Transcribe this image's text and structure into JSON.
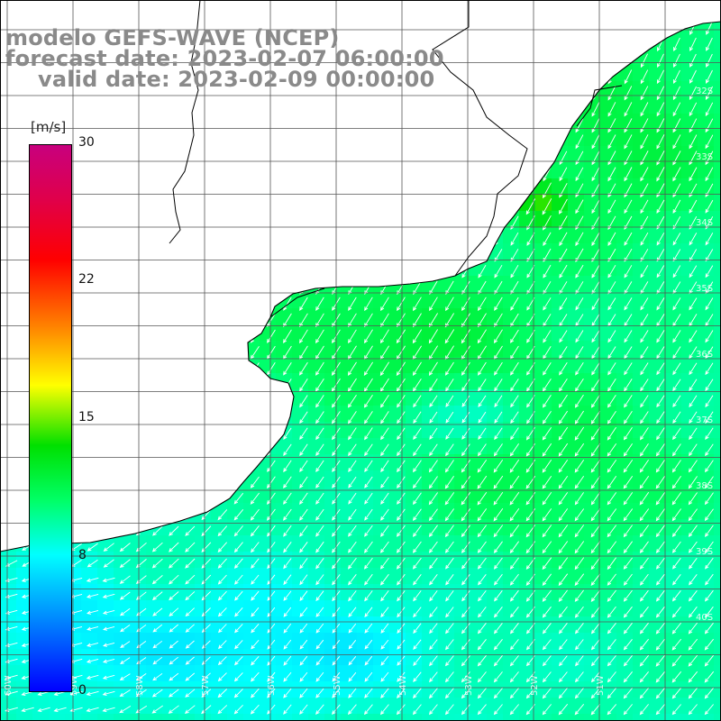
{
  "title": {
    "line1": "modelo GEFS-WAVE (NCEP)",
    "line2": "forecast date: 2023-02-07 06:00:00",
    "line3": "valid date: 2023-02-09 00:00:00"
  },
  "colorbar": {
    "unit": "[m/s]",
    "ticks": [
      "30",
      "22",
      "15",
      "8",
      "0"
    ],
    "colors": [
      "#0000ff",
      "#0090ff",
      "#00ffff",
      "#00ff66",
      "#00e000",
      "#ffff00",
      "#ff8000",
      "#ff0000",
      "#c8007e"
    ]
  },
  "lat_labels": [
    "32S",
    "33S",
    "34S",
    "35S",
    "36S",
    "37S",
    "38S",
    "39S",
    "40S"
  ],
  "lon_labels": [
    "60W",
    "59W",
    "58W",
    "57W",
    "56W",
    "55W",
    "54W",
    "53W",
    "52W",
    "51W"
  ],
  "colors": {
    "land": "#ffffff",
    "grid": "#555555",
    "coast": "#000000",
    "arrow": "#ffffff"
  }
}
